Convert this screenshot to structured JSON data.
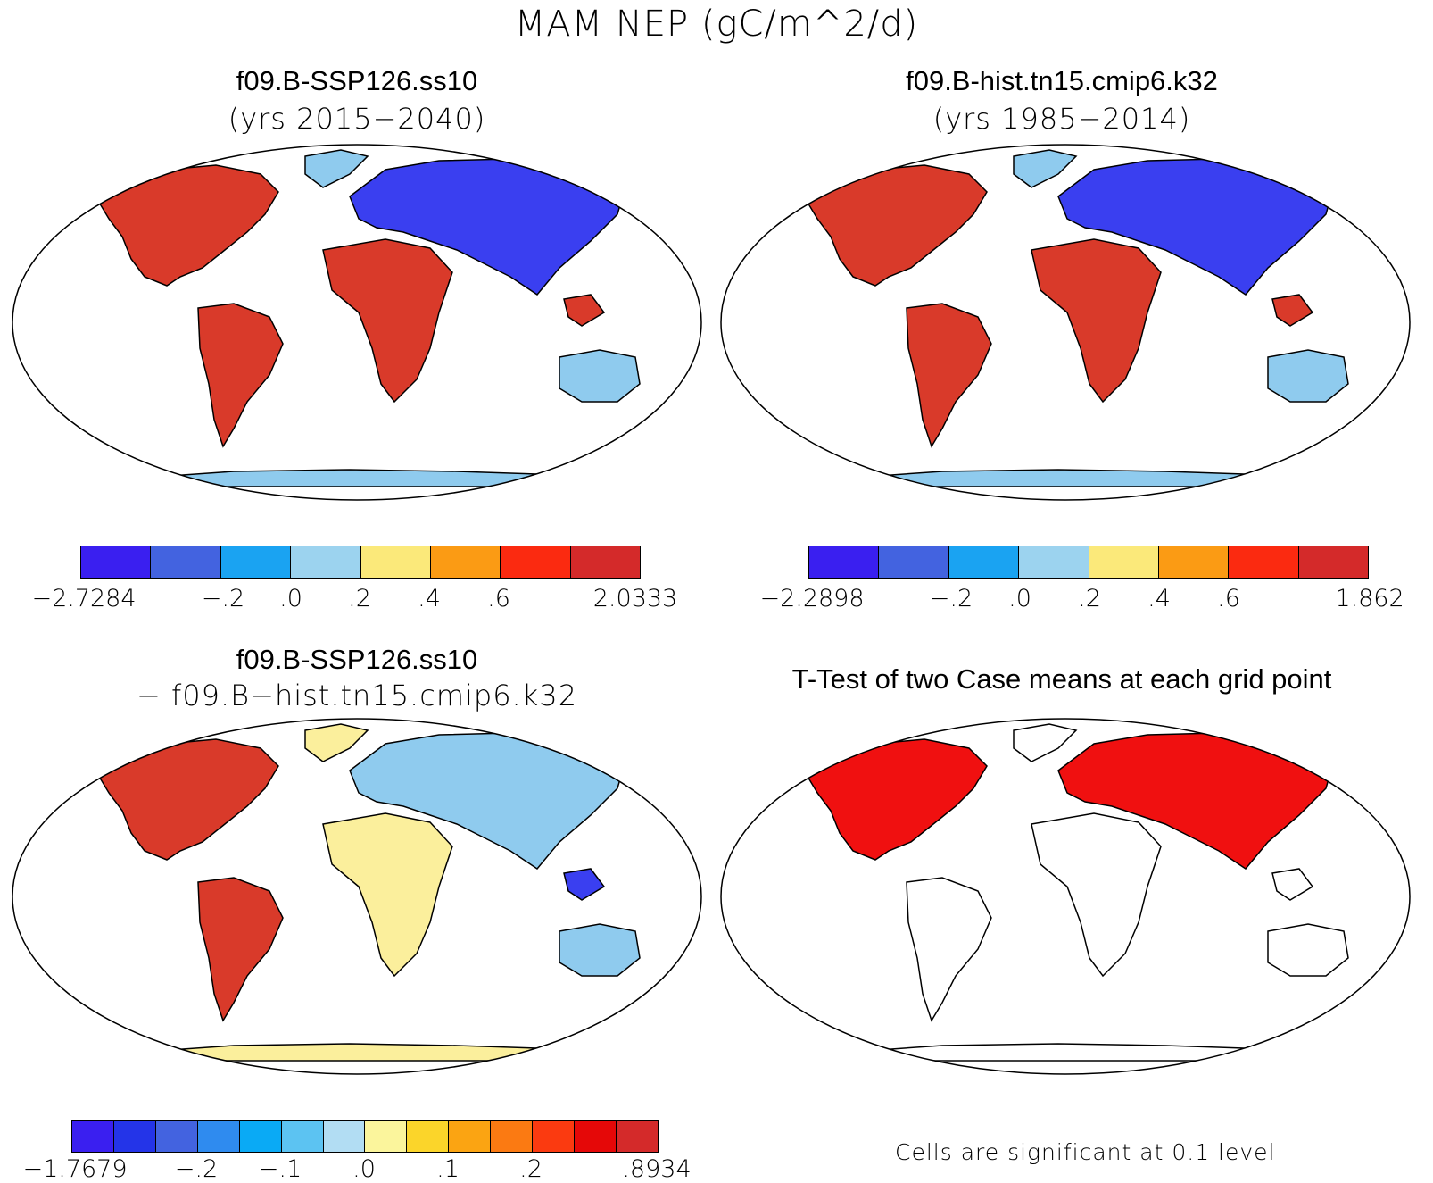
{
  "title": "MAM NEP (gC/m^2/d)",
  "panels": {
    "ssp": {
      "title_line1": "f09.B-SSP126.ss10",
      "title_line2": "(yrs 2015−2040)"
    },
    "hist": {
      "title_line1": "f09.B-hist.tn15.cmip6.k32",
      "title_line2": "(yrs 1985−2014)"
    },
    "diff": {
      "title_line1": "f09.B-SSP126.ss10",
      "title_line2": "− f09.B−hist.tn15.cmip6.k32"
    },
    "ttest": {
      "title": "T-Test of two Case means at each grid point",
      "note": "Cells are significant at 0.1 level"
    }
  },
  "colorbars": {
    "ssp": {
      "colors": [
        "#3a1ff0",
        "#4363e0",
        "#1aa3f2",
        "#9cd3ef",
        "#fbe97a",
        "#fb9b14",
        "#fb2a10",
        "#d42a2a"
      ],
      "labels": [
        "−2.7284",
        "−.2",
        ".0",
        ".2",
        ".4",
        ".6",
        "2.0333"
      ]
    },
    "hist": {
      "colors": [
        "#3a1ff0",
        "#4363e0",
        "#1aa3f2",
        "#9cd3ef",
        "#fbe97a",
        "#fb9b14",
        "#fb2a10",
        "#d42a2a"
      ],
      "labels": [
        "−2.2898",
        "−.2",
        ".0",
        ".2",
        ".4",
        ".6",
        "1.862"
      ]
    },
    "diff": {
      "colors": [
        "#3a1ff0",
        "#2434e8",
        "#4363e0",
        "#2f8bef",
        "#0aaaf5",
        "#5cc3f2",
        "#b2ddf3",
        "#fbf59c",
        "#fbd52a",
        "#fba412",
        "#fb7a12",
        "#fb3a10",
        "#e50808",
        "#d42a2a"
      ],
      "labels": [
        "−1.7679",
        "−.2",
        "−.1",
        ".0",
        ".1",
        ".2",
        ".8934"
      ]
    }
  },
  "map_colors": {
    "ocean": "#ffffff",
    "coast": "#000000",
    "ssp_land": "#8fcbee",
    "ssp_hot": "#d93a2a",
    "ssp_cold": "#3a3ff0",
    "diff_land": "#fbef9c",
    "ttest_sig": "#f01010"
  }
}
